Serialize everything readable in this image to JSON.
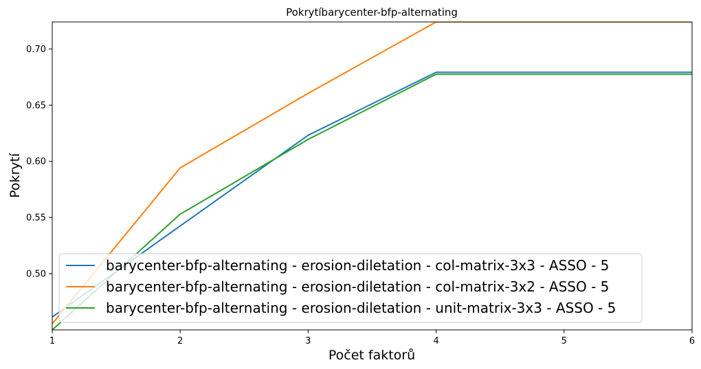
{
  "chart_data": {
    "type": "line",
    "title": "Pokrytíbarycenter-bfp-alternating",
    "xlabel": "Počet faktorů",
    "ylabel": "Pokrytí",
    "x": [
      1,
      2,
      3,
      4,
      5,
      6
    ],
    "xlim": [
      1,
      6
    ],
    "ylim": [
      0.45,
      0.724
    ],
    "xticks": [
      "1",
      "2",
      "3",
      "4",
      "5",
      "6"
    ],
    "yticks": [
      "0.50",
      "0.55",
      "0.60",
      "0.65",
      "0.70"
    ],
    "ytick_values": [
      0.5,
      0.55,
      0.6,
      0.65,
      0.7
    ],
    "grid": false,
    "legend_position": "lower-left",
    "series": [
      {
        "name": "barycenter-bfp-alternating - erosion-diletation - col-matrix-3x3 - ASSO - 5",
        "color": "#1f77b4",
        "values": [
          0.4615,
          0.5425,
          0.6232,
          0.6792,
          0.6792,
          0.6792
        ]
      },
      {
        "name": "barycenter-bfp-alternating - erosion-diletation - col-matrix-3x2 - ASSO - 5",
        "color": "#ff7f0e",
        "values": [
          0.4555,
          0.5942,
          0.6605,
          0.724,
          0.724,
          0.724
        ]
      },
      {
        "name": "barycenter-bfp-alternating - erosion-diletation - unit-matrix-3x3 - ASSO - 5",
        "color": "#2ca02c",
        "values": [
          0.45,
          0.553,
          0.6195,
          0.6775,
          0.6775,
          0.6775
        ]
      }
    ]
  }
}
